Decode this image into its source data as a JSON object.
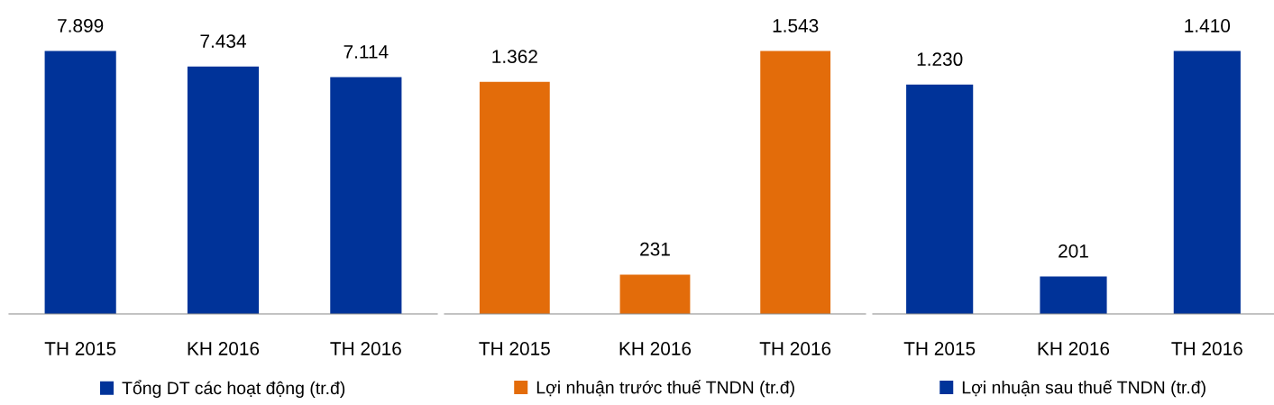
{
  "chart_data": [
    {
      "type": "bar",
      "categories": [
        "TH 2015",
        "KH 2016",
        "TH 2016"
      ],
      "legend": "bottom",
      "grid": false,
      "series": [
        {
          "name": "Tổng DT các hoạt động (tr.đ)",
          "color": "#003399",
          "values": [
            7899,
            7434,
            7114
          ],
          "value_labels": [
            "7.899",
            "7.434",
            "7.114"
          ]
        }
      ]
    },
    {
      "type": "bar",
      "categories": [
        "TH 2015",
        "KH 2016",
        "TH 2016"
      ],
      "legend": "bottom",
      "grid": false,
      "series": [
        {
          "name": "Lợi nhuận trước thuế TNDN (tr.đ)",
          "color": "#e36c0a",
          "values": [
            1362,
            231,
            1543
          ],
          "value_labels": [
            "1.362",
            "231",
            "1.543"
          ]
        }
      ]
    },
    {
      "type": "bar",
      "categories": [
        "TH 2015",
        "KH 2016",
        "TH 2016"
      ],
      "legend": "bottom",
      "grid": false,
      "series": [
        {
          "name": "Lợi nhuận sau thuế TNDN (tr.đ)",
          "color": "#003399",
          "values": [
            1230,
            201,
            1410
          ],
          "value_labels": [
            "1.230",
            "201",
            "1.410"
          ]
        }
      ]
    }
  ]
}
